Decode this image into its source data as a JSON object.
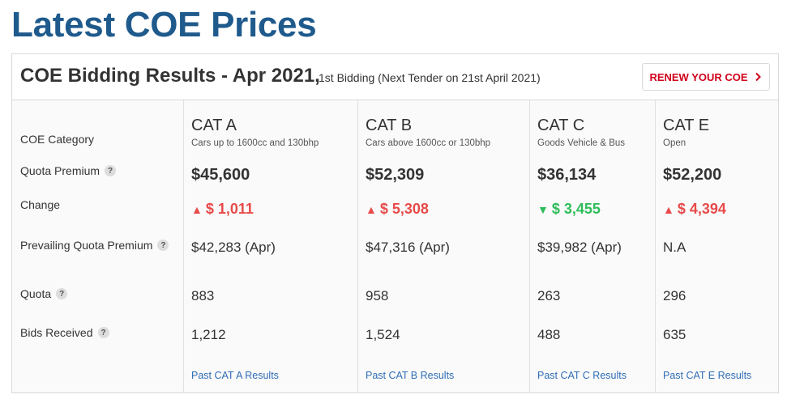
{
  "page": {
    "title": "Latest COE Prices"
  },
  "header": {
    "results_title": "COE Bidding Results - Apr 2021,",
    "results_sub": "1st Bidding (Next Tender on 21st April 2021)",
    "renew_label": "RENEW YOUR COE"
  },
  "labels": {
    "category": "COE Category",
    "quota_premium": "Quota Premium",
    "change": "Change",
    "pqp": "Prevailing Quota Premium",
    "quota": "Quota",
    "bids": "Bids Received",
    "help": "?"
  },
  "categories": [
    {
      "name": "CAT A",
      "desc": "Cars up to 1600cc and 130bhp",
      "premium": "$45,600",
      "change_dir": "up",
      "change_symbol": "▲",
      "change": "$ 1,011",
      "pqp": "$42,283 (Apr)",
      "quota": "883",
      "bids": "1,212",
      "link": "Past CAT A Results"
    },
    {
      "name": "CAT B",
      "desc": "Cars above 1600cc or 130bhp",
      "premium": "$52,309",
      "change_dir": "up",
      "change_symbol": "▲",
      "change": "$ 5,308",
      "pqp": "$47,316 (Apr)",
      "quota": "958",
      "bids": "1,524",
      "link": "Past CAT B Results"
    },
    {
      "name": "CAT C",
      "desc": "Goods Vehicle & Bus",
      "premium": "$36,134",
      "change_dir": "down",
      "change_symbol": "▼",
      "change": "$ 3,455",
      "pqp": "$39,982 (Apr)",
      "quota": "263",
      "bids": "488",
      "link": "Past CAT C Results"
    },
    {
      "name": "CAT E",
      "desc": "Open",
      "premium": "$52,200",
      "change_dir": "up",
      "change_symbol": "▲",
      "change": "$ 4,394",
      "pqp": "N.A",
      "quota": "296",
      "bids": "635",
      "link": "Past CAT E Results"
    }
  ],
  "colors": {
    "title": "#1f5a8c",
    "up": "#e84a4a",
    "down": "#2ebd59",
    "link": "#2f6db5",
    "renew": "#d0021b"
  }
}
